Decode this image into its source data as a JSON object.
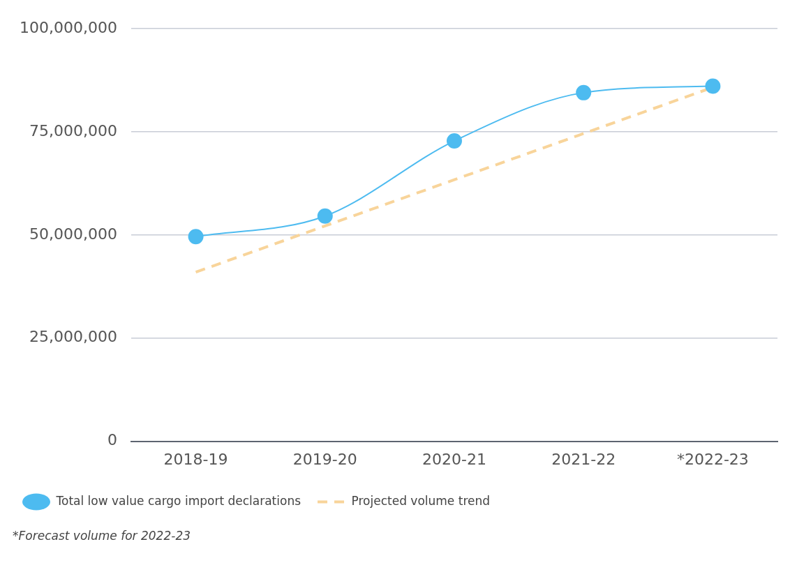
{
  "chart_data": {
    "type": "line",
    "categories": [
      "2018-19",
      "2019-20",
      "2020-21",
      "2021-22",
      "*2022-23"
    ],
    "series": [
      {
        "name": "Total low value cargo import declarations",
        "color": "#4dbbf0",
        "values": [
          49600000,
          54600000,
          72800000,
          84500000,
          86100000
        ],
        "marker": "circle"
      },
      {
        "name": "Projected volume trend",
        "color": "#f8d49a",
        "values": [
          41000000,
          52200000,
          63400000,
          74600000,
          85800000
        ],
        "line_style": "dashed",
        "marker": "none"
      }
    ],
    "ylim": [
      0,
      100000000
    ],
    "yticks": [
      {
        "value": 0,
        "label": "0"
      },
      {
        "value": 25000000,
        "label": "25,000,000"
      },
      {
        "value": 50000000,
        "label": "50,000,000"
      },
      {
        "value": 75000000,
        "label": "75,000,000"
      },
      {
        "value": 100000000,
        "label": "100,000,000"
      }
    ],
    "grid": "y",
    "legend": "bottom left",
    "annotations": [
      "*Forecast volume for 2022-23"
    ]
  }
}
